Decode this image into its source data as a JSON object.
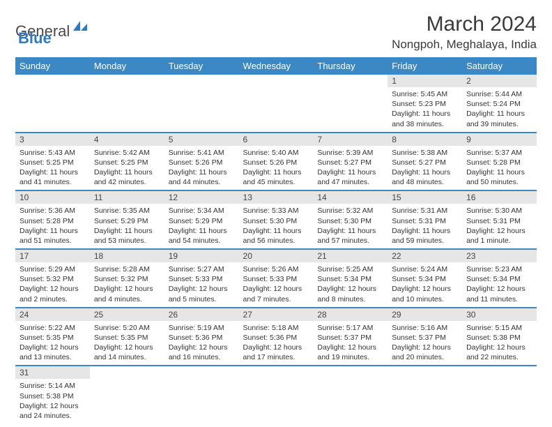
{
  "logo": {
    "general": "General",
    "blue": "Blue"
  },
  "title": "March 2024",
  "location": "Nongpoh, Meghalaya, India",
  "colors": {
    "header_bg": "#3b88c4",
    "header_text": "#ffffff",
    "daynum_bg": "#e6e6e6",
    "row_border": "#3b88c4",
    "text": "#333333",
    "logo_blue": "#2d7bc0"
  },
  "typography": {
    "title_fontsize": 30,
    "location_fontsize": 17,
    "day_header_fontsize": 13,
    "cell_fontsize": 10.5
  },
  "dayHeaders": [
    "Sunday",
    "Monday",
    "Tuesday",
    "Wednesday",
    "Thursday",
    "Friday",
    "Saturday"
  ],
  "weeks": [
    [
      null,
      null,
      null,
      null,
      null,
      {
        "n": "1",
        "sr": "5:45 AM",
        "ss": "5:23 PM",
        "dl": "11 hours and 38 minutes."
      },
      {
        "n": "2",
        "sr": "5:44 AM",
        "ss": "5:24 PM",
        "dl": "11 hours and 39 minutes."
      }
    ],
    [
      {
        "n": "3",
        "sr": "5:43 AM",
        "ss": "5:25 PM",
        "dl": "11 hours and 41 minutes."
      },
      {
        "n": "4",
        "sr": "5:42 AM",
        "ss": "5:25 PM",
        "dl": "11 hours and 42 minutes."
      },
      {
        "n": "5",
        "sr": "5:41 AM",
        "ss": "5:26 PM",
        "dl": "11 hours and 44 minutes."
      },
      {
        "n": "6",
        "sr": "5:40 AM",
        "ss": "5:26 PM",
        "dl": "11 hours and 45 minutes."
      },
      {
        "n": "7",
        "sr": "5:39 AM",
        "ss": "5:27 PM",
        "dl": "11 hours and 47 minutes."
      },
      {
        "n": "8",
        "sr": "5:38 AM",
        "ss": "5:27 PM",
        "dl": "11 hours and 48 minutes."
      },
      {
        "n": "9",
        "sr": "5:37 AM",
        "ss": "5:28 PM",
        "dl": "11 hours and 50 minutes."
      }
    ],
    [
      {
        "n": "10",
        "sr": "5:36 AM",
        "ss": "5:28 PM",
        "dl": "11 hours and 51 minutes."
      },
      {
        "n": "11",
        "sr": "5:35 AM",
        "ss": "5:29 PM",
        "dl": "11 hours and 53 minutes."
      },
      {
        "n": "12",
        "sr": "5:34 AM",
        "ss": "5:29 PM",
        "dl": "11 hours and 54 minutes."
      },
      {
        "n": "13",
        "sr": "5:33 AM",
        "ss": "5:30 PM",
        "dl": "11 hours and 56 minutes."
      },
      {
        "n": "14",
        "sr": "5:32 AM",
        "ss": "5:30 PM",
        "dl": "11 hours and 57 minutes."
      },
      {
        "n": "15",
        "sr": "5:31 AM",
        "ss": "5:31 PM",
        "dl": "11 hours and 59 minutes."
      },
      {
        "n": "16",
        "sr": "5:30 AM",
        "ss": "5:31 PM",
        "dl": "12 hours and 1 minute."
      }
    ],
    [
      {
        "n": "17",
        "sr": "5:29 AM",
        "ss": "5:32 PM",
        "dl": "12 hours and 2 minutes."
      },
      {
        "n": "18",
        "sr": "5:28 AM",
        "ss": "5:32 PM",
        "dl": "12 hours and 4 minutes."
      },
      {
        "n": "19",
        "sr": "5:27 AM",
        "ss": "5:33 PM",
        "dl": "12 hours and 5 minutes."
      },
      {
        "n": "20",
        "sr": "5:26 AM",
        "ss": "5:33 PM",
        "dl": "12 hours and 7 minutes."
      },
      {
        "n": "21",
        "sr": "5:25 AM",
        "ss": "5:34 PM",
        "dl": "12 hours and 8 minutes."
      },
      {
        "n": "22",
        "sr": "5:24 AM",
        "ss": "5:34 PM",
        "dl": "12 hours and 10 minutes."
      },
      {
        "n": "23",
        "sr": "5:23 AM",
        "ss": "5:34 PM",
        "dl": "12 hours and 11 minutes."
      }
    ],
    [
      {
        "n": "24",
        "sr": "5:22 AM",
        "ss": "5:35 PM",
        "dl": "12 hours and 13 minutes."
      },
      {
        "n": "25",
        "sr": "5:20 AM",
        "ss": "5:35 PM",
        "dl": "12 hours and 14 minutes."
      },
      {
        "n": "26",
        "sr": "5:19 AM",
        "ss": "5:36 PM",
        "dl": "12 hours and 16 minutes."
      },
      {
        "n": "27",
        "sr": "5:18 AM",
        "ss": "5:36 PM",
        "dl": "12 hours and 17 minutes."
      },
      {
        "n": "28",
        "sr": "5:17 AM",
        "ss": "5:37 PM",
        "dl": "12 hours and 19 minutes."
      },
      {
        "n": "29",
        "sr": "5:16 AM",
        "ss": "5:37 PM",
        "dl": "12 hours and 20 minutes."
      },
      {
        "n": "30",
        "sr": "5:15 AM",
        "ss": "5:38 PM",
        "dl": "12 hours and 22 minutes."
      }
    ],
    [
      {
        "n": "31",
        "sr": "5:14 AM",
        "ss": "5:38 PM",
        "dl": "12 hours and 24 minutes."
      },
      null,
      null,
      null,
      null,
      null,
      null
    ]
  ],
  "labels": {
    "sunrise": "Sunrise: ",
    "sunset": "Sunset: ",
    "daylight": "Daylight: "
  }
}
